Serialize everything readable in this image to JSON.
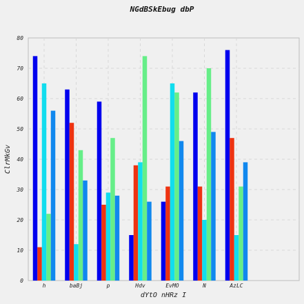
{
  "chart_data": {
    "type": "bar",
    "title": "NGdBSkEbug dbP",
    "xlabel": "dYtO nHRz I",
    "ylabel": "ClrMkGv",
    "ylim": [
      0,
      80
    ],
    "yticks": [
      0,
      10,
      20,
      30,
      40,
      50,
      60,
      70,
      80
    ],
    "grid": true,
    "legend": "none",
    "categories": [
      "h",
      "baBj",
      "p",
      "Hdv",
      "EvMO",
      "N",
      "AzLC"
    ],
    "series": [
      {
        "color": "#0000ee",
        "values": [
          74,
          63,
          59,
          15,
          26,
          62,
          76
        ]
      },
      {
        "color": "#ee3311",
        "values": [
          11,
          52,
          25,
          38,
          31,
          31,
          47
        ]
      },
      {
        "color": "#11ddee",
        "values": [
          65,
          12,
          29,
          39,
          65,
          20,
          15
        ]
      },
      {
        "color": "#66ee88",
        "values": [
          22,
          43,
          47,
          74,
          62,
          70,
          31
        ]
      },
      {
        "color": "#1188ee",
        "values": [
          56,
          33,
          28,
          26,
          46,
          49,
          39
        ]
      }
    ]
  }
}
